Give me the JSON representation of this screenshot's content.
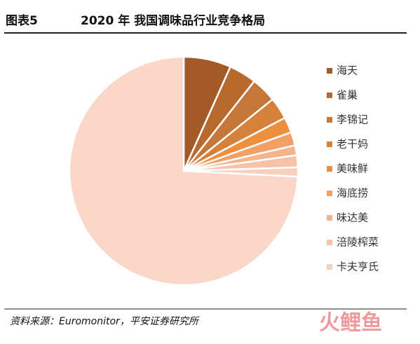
{
  "header": {
    "label": "图表5",
    "title": "2020 年 我国调味品行业竞争格局"
  },
  "chart_data": {
    "type": "pie",
    "categories": [
      "海天",
      "雀巢",
      "李锦记",
      "老干妈",
      "美味鲜",
      "海底捞",
      "味达美",
      "涪陵榨菜",
      "卡夫亨氏",
      null
    ],
    "values": [
      6.7,
      3.9,
      3.6,
      3.1,
      2.2,
      1.9,
      1.4,
      1.7,
      1.3,
      74.2
    ],
    "colors": [
      "#a35a26",
      "#b8692e",
      "#c5773a",
      "#d4813b",
      "#ec8f3f",
      "#f3a066",
      "#f5b48e",
      "#f7c3a8",
      "#f9d0bd",
      "#fbd7c9"
    ],
    "legend": "right"
  },
  "footer": {
    "source": "资料来源：Euromonitor，平安证券研究所",
    "watermark": "火鲤鱼"
  }
}
